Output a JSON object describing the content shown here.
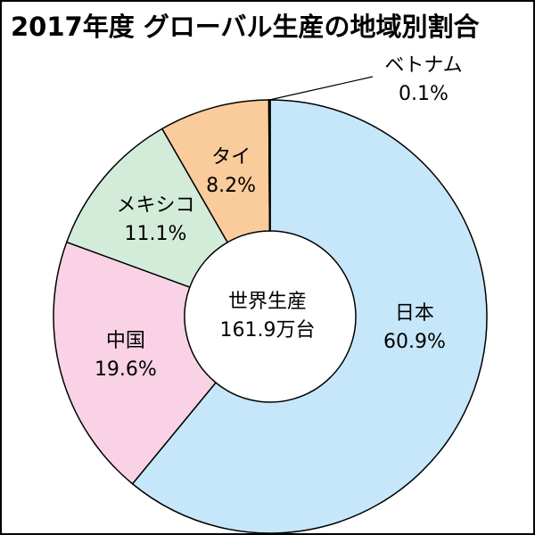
{
  "chart_data": {
    "type": "donut",
    "title": "2017年度 グローバル生産の地域別割合",
    "center_text": [
      "世界生産",
      "161.9万台"
    ],
    "categories": [
      "日本",
      "中国",
      "メキシコ",
      "タイ",
      "ベトナム"
    ],
    "values": [
      60.9,
      19.6,
      11.1,
      8.2,
      0.1
    ],
    "value_labels": [
      "60.9%",
      "19.6%",
      "11.1%",
      "8.2%",
      "0.1%"
    ],
    "colors": [
      "#c6e7f9",
      "#f9d2e6",
      "#d3ecda",
      "#fbcc9b",
      "#1a3a5a"
    ]
  }
}
